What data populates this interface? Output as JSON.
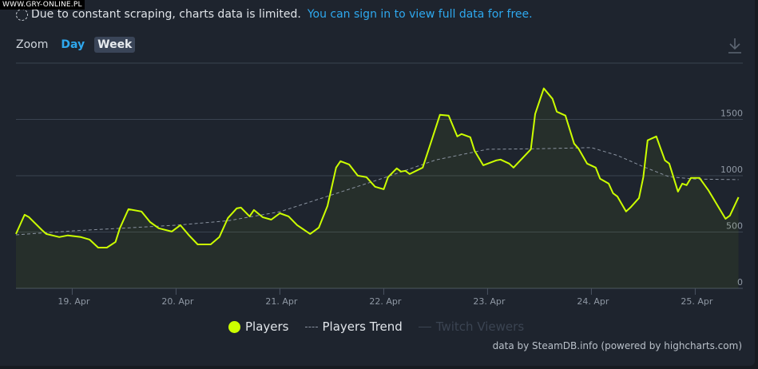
{
  "watermark": "WWW.GRY-ONLINE.PL",
  "notice": {
    "text": "Due to constant scraping, charts data is limited.",
    "link": "You can sign in to view full data for free."
  },
  "zoom": {
    "label": "Zoom",
    "options": [
      "Day",
      "Week"
    ],
    "selected": "Week"
  },
  "colors": {
    "players": "#ccff00",
    "trend": "#8a93a0",
    "twitch": "#3b4452",
    "link": "#2ea8ee",
    "background": "#1e242e"
  },
  "icons": {
    "download": "download-icon",
    "notice": "dashed-circle-icon"
  },
  "credits": "data by SteamDB.info (powered by highcharts.com)",
  "chart_data": {
    "type": "line",
    "xlim": [
      "18 Apr 11:00",
      "25 Apr 11:00"
    ],
    "ylim": [
      0,
      2000
    ],
    "yticks": [
      "0",
      "500",
      "1000",
      "1500"
    ],
    "ytick_values": [
      0,
      500,
      1000,
      1500,
      2000
    ],
    "xticks": [
      "19. Apr",
      "20. Apr",
      "21. Apr",
      "22. Apr",
      "23. Apr",
      "24. Apr",
      "25. Apr"
    ],
    "xtick_dates": [
      "19 Apr 00:00",
      "20 Apr 00:00",
      "21 Apr 00:00",
      "22 Apr 00:00",
      "23 Apr 00:00",
      "24 Apr 00:00",
      "25 Apr 00:00"
    ],
    "grid": true,
    "legend_placement": "bottom-center",
    "legend": [
      "Players",
      "Players Trend",
      "Twitch Viewers"
    ],
    "series": [
      {
        "name": "Players",
        "style": "solid",
        "points": [
          [
            "18 Apr 11:00",
            483
          ],
          [
            "18 Apr 13:00",
            653
          ],
          [
            "18 Apr 14:00",
            632
          ],
          [
            "18 Apr 17:00",
            518
          ],
          [
            "18 Apr 18:00",
            483
          ],
          [
            "18 Apr 21:00",
            455
          ],
          [
            "18 Apr 23:00",
            470
          ],
          [
            "19 Apr 02:00",
            455
          ],
          [
            "19 Apr 04:00",
            433
          ],
          [
            "19 Apr 06:00",
            362
          ],
          [
            "19 Apr 08:00",
            362
          ],
          [
            "19 Apr 10:00",
            412
          ],
          [
            "19 Apr 11:00",
            533
          ],
          [
            "19 Apr 13:00",
            703
          ],
          [
            "19 Apr 16:00",
            682
          ],
          [
            "19 Apr 18:00",
            589
          ],
          [
            "19 Apr 20:00",
            533
          ],
          [
            "19 Apr 23:00",
            504
          ],
          [
            "20 Apr 01:00",
            561
          ],
          [
            "20 Apr 03:00",
            470
          ],
          [
            "20 Apr 05:00",
            390
          ],
          [
            "20 Apr 08:00",
            390
          ],
          [
            "20 Apr 10:00",
            455
          ],
          [
            "20 Apr 12:00",
            625
          ],
          [
            "20 Apr 14:00",
            710
          ],
          [
            "20 Apr 15:00",
            717
          ],
          [
            "20 Apr 17:00",
            639
          ],
          [
            "20 Apr 18:00",
            696
          ],
          [
            "20 Apr 20:00",
            632
          ],
          [
            "20 Apr 22:00",
            610
          ],
          [
            "21 Apr 00:00",
            667
          ],
          [
            "21 Apr 02:00",
            639
          ],
          [
            "21 Apr 04:00",
            561
          ],
          [
            "21 Apr 07:00",
            483
          ],
          [
            "21 Apr 09:00",
            540
          ],
          [
            "21 Apr 11:00",
            731
          ],
          [
            "21 Apr 13:00",
            1072
          ],
          [
            "21 Apr 14:00",
            1129
          ],
          [
            "21 Apr 16:00",
            1100
          ],
          [
            "21 Apr 18:00",
            1001
          ],
          [
            "21 Apr 20:00",
            987
          ],
          [
            "21 Apr 22:00",
            902
          ],
          [
            "22 Apr 00:00",
            880
          ],
          [
            "22 Apr 01:00",
            987
          ],
          [
            "22 Apr 03:00",
            1065
          ],
          [
            "22 Apr 04:00",
            1037
          ],
          [
            "22 Apr 05:00",
            1044
          ],
          [
            "22 Apr 06:00",
            1015
          ],
          [
            "22 Apr 09:00",
            1072
          ],
          [
            "22 Apr 11:00",
            1306
          ],
          [
            "22 Apr 13:00",
            1541
          ],
          [
            "22 Apr 15:00",
            1534
          ],
          [
            "22 Apr 17:00",
            1349
          ],
          [
            "22 Apr 18:00",
            1370
          ],
          [
            "22 Apr 20:00",
            1342
          ],
          [
            "22 Apr 21:00",
            1221
          ],
          [
            "22 Apr 23:00",
            1093
          ],
          [
            "23 Apr 02:00",
            1136
          ],
          [
            "23 Apr 03:00",
            1143
          ],
          [
            "23 Apr 05:00",
            1108
          ],
          [
            "23 Apr 06:00",
            1072
          ],
          [
            "23 Apr 10:00",
            1235
          ],
          [
            "23 Apr 11:00",
            1548
          ],
          [
            "23 Apr 13:00",
            1775
          ],
          [
            "23 Apr 15:00",
            1683
          ],
          [
            "23 Apr 16:00",
            1569
          ],
          [
            "23 Apr 18:00",
            1534
          ],
          [
            "23 Apr 20:00",
            1285
          ],
          [
            "23 Apr 21:00",
            1242
          ],
          [
            "23 Apr 23:00",
            1108
          ],
          [
            "24 Apr 01:00",
            1072
          ],
          [
            "24 Apr 02:00",
            973
          ],
          [
            "24 Apr 04:00",
            930
          ],
          [
            "24 Apr 05:00",
            845
          ],
          [
            "24 Apr 06:00",
            816
          ],
          [
            "24 Apr 08:00",
            682
          ],
          [
            "24 Apr 09:00",
            717
          ],
          [
            "24 Apr 11:00",
            802
          ],
          [
            "24 Apr 12:00",
            987
          ],
          [
            "24 Apr 13:00",
            1314
          ],
          [
            "24 Apr 15:00",
            1349
          ],
          [
            "24 Apr 16:00",
            1242
          ],
          [
            "24 Apr 17:00",
            1136
          ],
          [
            "24 Apr 18:00",
            1108
          ],
          [
            "24 Apr 20:00",
            859
          ],
          [
            "24 Apr 21:00",
            930
          ],
          [
            "24 Apr 22:00",
            916
          ],
          [
            "24 Apr 23:00",
            980
          ],
          [
            "25 Apr 01:00",
            980
          ],
          [
            "25 Apr 03:00",
            873
          ],
          [
            "25 Apr 07:00",
            618
          ],
          [
            "25 Apr 08:00",
            646
          ],
          [
            "25 Apr 10:00",
            809
          ]
        ]
      },
      {
        "name": "Players Trend",
        "style": "dashed",
        "points": [
          [
            "18 Apr 11:00",
            475
          ],
          [
            "19 Apr 00:00",
            510
          ],
          [
            "20 Apr 00:00",
            560
          ],
          [
            "20 Apr 12:00",
            600
          ],
          [
            "21 Apr 00:00",
            680
          ],
          [
            "21 Apr 12:00",
            830
          ],
          [
            "22 Apr 00:00",
            980
          ],
          [
            "22 Apr 12:00",
            1140
          ],
          [
            "23 Apr 00:00",
            1235
          ],
          [
            "23 Apr 12:00",
            1240
          ],
          [
            "24 Apr 00:00",
            1250
          ],
          [
            "24 Apr 06:00",
            1180
          ],
          [
            "24 Apr 12:00",
            1080
          ],
          [
            "24 Apr 18:00",
            990
          ],
          [
            "25 Apr 00:00",
            970
          ],
          [
            "25 Apr 10:00",
            965
          ]
        ]
      },
      {
        "name": "Twitch Viewers",
        "style": "solid",
        "hidden": true,
        "points": []
      }
    ]
  }
}
